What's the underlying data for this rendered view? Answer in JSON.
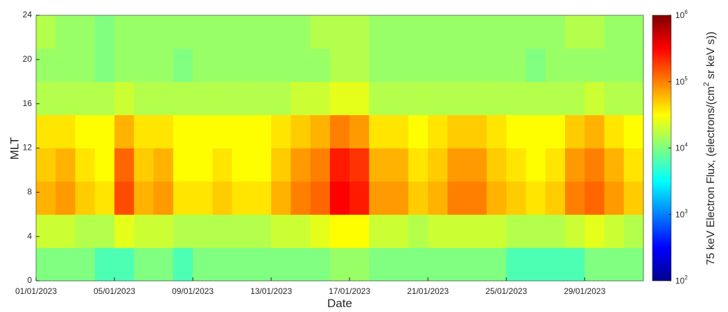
{
  "chart_data": {
    "type": "heatmap",
    "xlabel": "Date",
    "ylabel": "MLT",
    "colorbar_label": [
      "75 keV Electron Flux, (electrons/(cm",
      "2",
      " sr keV s))"
    ],
    "x": [
      "01/01/2023",
      "02/01/2023",
      "03/01/2023",
      "04/01/2023",
      "05/01/2023",
      "06/01/2023",
      "07/01/2023",
      "08/01/2023",
      "09/01/2023",
      "10/01/2023",
      "11/01/2023",
      "12/01/2023",
      "13/01/2023",
      "14/01/2023",
      "15/01/2023",
      "16/01/2023",
      "17/01/2023",
      "18/01/2023",
      "19/01/2023",
      "20/01/2023",
      "21/01/2023",
      "22/01/2023",
      "23/01/2023",
      "24/01/2023",
      "25/01/2023",
      "26/01/2023",
      "27/01/2023",
      "28/01/2023",
      "29/01/2023",
      "30/01/2023",
      "31/01/2023"
    ],
    "xticks": [
      "01/01/2023",
      "05/01/2023",
      "09/01/2023",
      "13/01/2023",
      "17/01/2023",
      "21/01/2023",
      "25/01/2023",
      "29/01/2023"
    ],
    "ybins": [
      0,
      3,
      6,
      9,
      12,
      15,
      18,
      21,
      24
    ],
    "ylim": [
      0,
      24
    ],
    "yticks": [
      0,
      4,
      8,
      12,
      16,
      20,
      24
    ],
    "clim": [
      100,
      1000000
    ],
    "color_scale": "log",
    "colormap": "jet",
    "cticks": [
      {
        "value": 100,
        "label": "10",
        "sup": "2"
      },
      {
        "value": 1000,
        "label": "10",
        "sup": "3"
      },
      {
        "value": 10000,
        "label": "10",
        "sup": "4"
      },
      {
        "value": 100000,
        "label": "10",
        "sup": "5"
      },
      {
        "value": 1000000,
        "label": "10",
        "sup": "6"
      }
    ],
    "values": [
      [
        10000,
        10000,
        10000,
        6300,
        6300,
        10000,
        10000,
        6300,
        10000,
        10000,
        10000,
        10000,
        10000,
        10000,
        10000,
        12600,
        12600,
        10000,
        10000,
        10000,
        10000,
        10000,
        10000,
        10000,
        6300,
        6300,
        6300,
        6300,
        10000,
        10000,
        10000
      ],
      [
        20000,
        20000,
        16000,
        16000,
        25000,
        20000,
        20000,
        16000,
        16000,
        16000,
        16000,
        16000,
        20000,
        20000,
        25000,
        32000,
        32000,
        20000,
        20000,
        16000,
        20000,
        20000,
        20000,
        20000,
        16000,
        16000,
        16000,
        20000,
        25000,
        20000,
        16000
      ],
      [
        63000,
        79000,
        50000,
        40000,
        160000,
        63000,
        79000,
        40000,
        40000,
        50000,
        40000,
        40000,
        63000,
        100000,
        126000,
        320000,
        250000,
        79000,
        79000,
        50000,
        63000,
        100000,
        100000,
        63000,
        50000,
        40000,
        50000,
        100000,
        126000,
        79000,
        50000
      ],
      [
        50000,
        63000,
        40000,
        32000,
        126000,
        50000,
        63000,
        32000,
        32000,
        40000,
        32000,
        32000,
        50000,
        79000,
        100000,
        250000,
        200000,
        63000,
        63000,
        40000,
        50000,
        79000,
        79000,
        50000,
        40000,
        32000,
        40000,
        79000,
        100000,
        63000,
        40000
      ],
      [
        40000,
        40000,
        32000,
        32000,
        63000,
        40000,
        40000,
        32000,
        32000,
        32000,
        32000,
        32000,
        40000,
        50000,
        63000,
        100000,
        79000,
        40000,
        40000,
        32000,
        40000,
        50000,
        50000,
        40000,
        32000,
        32000,
        32000,
        50000,
        63000,
        40000,
        32000
      ],
      [
        16000,
        16000,
        16000,
        16000,
        20000,
        16000,
        16000,
        16000,
        16000,
        16000,
        16000,
        16000,
        16000,
        20000,
        20000,
        25000,
        25000,
        16000,
        16000,
        16000,
        16000,
        16000,
        16000,
        16000,
        16000,
        16000,
        16000,
        16000,
        20000,
        16000,
        16000
      ],
      [
        12600,
        12600,
        12600,
        10000,
        12600,
        12600,
        12600,
        10000,
        12600,
        12600,
        12600,
        12600,
        12600,
        12600,
        12600,
        16000,
        16000,
        12600,
        12600,
        12600,
        12600,
        12600,
        12600,
        12600,
        12600,
        10000,
        12600,
        12600,
        12600,
        12600,
        12600
      ],
      [
        16000,
        12600,
        12600,
        10000,
        12600,
        12600,
        12600,
        12600,
        12600,
        12600,
        12600,
        12600,
        12600,
        12600,
        16000,
        16000,
        16000,
        12600,
        12600,
        12600,
        12600,
        12600,
        12600,
        12600,
        12600,
        12600,
        12600,
        16000,
        16000,
        12600,
        12600
      ]
    ]
  }
}
